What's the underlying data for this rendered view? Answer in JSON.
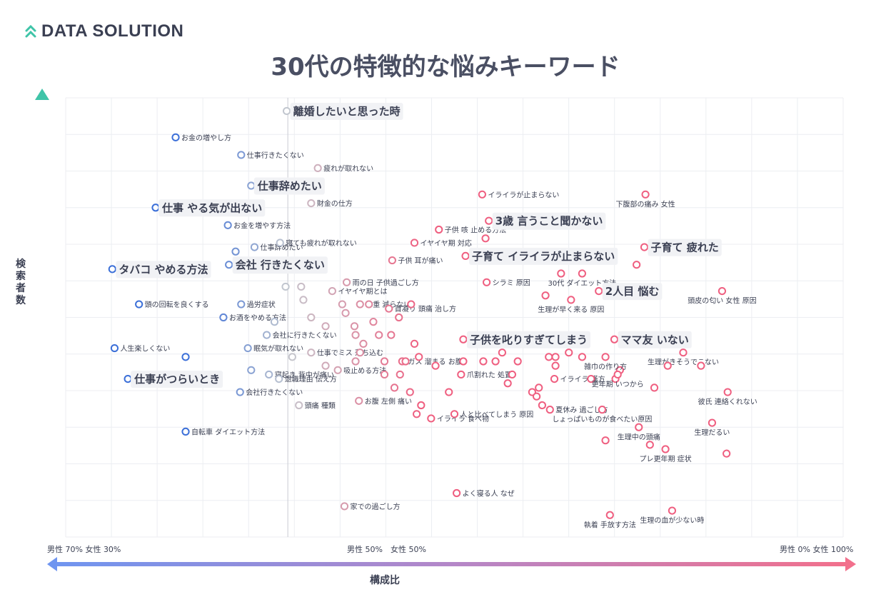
{
  "brand": {
    "name": "DATA SOLUTION",
    "icon": "double-chevron-up-icon",
    "color": "#3fc4a8"
  },
  "title": "30代の特徴的な悩みキーワード",
  "chart_data": {
    "type": "scatter",
    "ylabel": "検索者数",
    "xlabel": "構成比",
    "xticks": [
      "男性 70% 女性 30%",
      "男性 50%　女性 50%",
      "男性 0% 女性 100%"
    ],
    "xlim": [
      30,
      100
    ],
    "ylim": [
      0,
      100
    ],
    "x_unit": "女性比率(%)",
    "y_unit": "相対値",
    "grid": true,
    "colors": {
      "male": "#3b6fd8",
      "female": "#ef5f80",
      "neutral": "#c4c8cf"
    },
    "points": [
      {
        "label": "離婚したいと思った時",
        "x": 49.9,
        "y": 97,
        "emph": true
      },
      {
        "label": "お金の増やし方",
        "x": 39.9,
        "y": 91
      },
      {
        "label": "仕事行きたくない",
        "x": 45.8,
        "y": 87
      },
      {
        "label": "疲れが取れない",
        "x": 52.7,
        "y": 84
      },
      {
        "label": "仕事辞めたい",
        "x": 46.7,
        "y": 80,
        "emph": true
      },
      {
        "label": "財金の仕方",
        "x": 52.1,
        "y": 76
      },
      {
        "label": "仕事 やる気が出ない",
        "x": 38.1,
        "y": 75,
        "emph": true
      },
      {
        "label": "お金を増やす方法",
        "x": 44.6,
        "y": 71
      },
      {
        "label": "仕事辞めたい",
        "x": 47.0,
        "y": 66
      },
      {
        "label": "寝ても疲れが取れない",
        "x": 49.3,
        "y": 67
      },
      {
        "label": "",
        "x": 45.3,
        "y": 65
      },
      {
        "label": "タバコ やめる方法",
        "x": 34.2,
        "y": 61,
        "emph": true
      },
      {
        "label": "会社 行きたくない",
        "x": 44.7,
        "y": 62,
        "emph": true
      },
      {
        "label": "イヤイヤ期とは",
        "x": 54.0,
        "y": 56
      },
      {
        "label": "",
        "x": 49.8,
        "y": 57
      },
      {
        "label": "",
        "x": 51.2,
        "y": 57
      },
      {
        "label": "過労症状",
        "x": 45.8,
        "y": 53
      },
      {
        "label": "",
        "x": 51.4,
        "y": 54
      },
      {
        "label": "頭の回転を良くする",
        "x": 36.6,
        "y": 53
      },
      {
        "label": "お酒をやめる方法",
        "x": 44.2,
        "y": 50
      },
      {
        "label": "",
        "x": 48.8,
        "y": 49
      },
      {
        "label": "会社に行きたくない",
        "x": 48.1,
        "y": 46
      },
      {
        "label": "人生楽しくない",
        "x": 34.4,
        "y": 43
      },
      {
        "label": "眠気が取れない",
        "x": 46.4,
        "y": 43
      },
      {
        "label": "",
        "x": 40.8,
        "y": 41
      },
      {
        "label": "",
        "x": 50.4,
        "y": 41
      },
      {
        "label": "",
        "x": 46.7,
        "y": 38
      },
      {
        "label": "寝起き 背中が痛い",
        "x": 48.3,
        "y": 37
      },
      {
        "label": "仕事がつらいとき",
        "x": 35.6,
        "y": 36,
        "emph": true
      },
      {
        "label": "退職理由 伝え方",
        "x": 49.2,
        "y": 36
      },
      {
        "label": "会社行きたくない",
        "x": 45.7,
        "y": 33
      },
      {
        "label": "頭痛 種類",
        "x": 51.0,
        "y": 30
      },
      {
        "label": "自転車 ダイエット方法",
        "x": 40.8,
        "y": 24
      },
      {
        "label": "",
        "x": 52.1,
        "y": 50
      },
      {
        "label": "",
        "x": 53.4,
        "y": 48
      },
      {
        "label": "仕事でミス 落ち込む",
        "x": 52.1,
        "y": 42
      },
      {
        "label": "",
        "x": 53.4,
        "y": 39
      },
      {
        "label": "吸止める方法",
        "x": 54.5,
        "y": 38
      },
      {
        "label": "家での過ごし方",
        "x": 55.1,
        "y": 7
      },
      {
        "label": "雨の日 子供過ごし方",
        "x": 55.3,
        "y": 58
      },
      {
        "label": "体重 減らない",
        "x": 56.5,
        "y": 53
      },
      {
        "label": "首凝り 頭痛 治し方",
        "x": 59.1,
        "y": 52
      },
      {
        "label": "子供 耳が痛い",
        "x": 59.4,
        "y": 63
      },
      {
        "label": "イヤイヤ期 対応",
        "x": 61.4,
        "y": 67
      },
      {
        "label": "子供 咳 止める方法",
        "x": 63.6,
        "y": 70
      },
      {
        "label": "ガス 溜まる お腹",
        "x": 60.3,
        "y": 40
      },
      {
        "label": "お腹 左側 痛い",
        "x": 56.4,
        "y": 31
      },
      {
        "label": "",
        "x": 54.9,
        "y": 53
      },
      {
        "label": "",
        "x": 55.2,
        "y": 51
      },
      {
        "label": "",
        "x": 56.0,
        "y": 48
      },
      {
        "label": "",
        "x": 56.1,
        "y": 46
      },
      {
        "label": "",
        "x": 56.8,
        "y": 44
      },
      {
        "label": "",
        "x": 56.5,
        "y": 42
      },
      {
        "label": "",
        "x": 56.1,
        "y": 40
      },
      {
        "label": "",
        "x": 58.2,
        "y": 46
      },
      {
        "label": "",
        "x": 57.3,
        "y": 53
      },
      {
        "label": "",
        "x": 57.7,
        "y": 49
      },
      {
        "label": "",
        "x": 58.7,
        "y": 40
      },
      {
        "label": "",
        "x": 58.7,
        "y": 37
      },
      {
        "label": "",
        "x": 59.6,
        "y": 34
      },
      {
        "label": "",
        "x": 60.1,
        "y": 37
      },
      {
        "label": "",
        "x": 60.6,
        "y": 40
      },
      {
        "label": "",
        "x": 61.0,
        "y": 33
      },
      {
        "label": "",
        "x": 61.4,
        "y": 44
      },
      {
        "label": "",
        "x": 59.3,
        "y": 46
      },
      {
        "label": "",
        "x": 60.0,
        "y": 50
      },
      {
        "label": "",
        "x": 61.1,
        "y": 53
      },
      {
        "label": "",
        "x": 61.8,
        "y": 41
      },
      {
        "label": "",
        "x": 62.0,
        "y": 30
      },
      {
        "label": "",
        "x": 61.6,
        "y": 28
      },
      {
        "label": "",
        "x": 63.3,
        "y": 39
      },
      {
        "label": "イライラ 食べ物",
        "x": 62.9,
        "y": 27
      },
      {
        "label": "人と比べてしまう 原因",
        "x": 65.0,
        "y": 28
      },
      {
        "label": "",
        "x": 64.5,
        "y": 33
      },
      {
        "label": "爪割れた 処置",
        "x": 65.6,
        "y": 37
      },
      {
        "label": "",
        "x": 65.8,
        "y": 40
      },
      {
        "label": "よく寝る人 なぜ",
        "x": 65.2,
        "y": 10
      },
      {
        "label": "子育て イライラが止まらない",
        "x": 66.0,
        "y": 64,
        "emph": true
      },
      {
        "label": "イライラが止まらない",
        "x": 67.5,
        "y": 78
      },
      {
        "label": "3歳 言うこと聞かない",
        "x": 68.1,
        "y": 72,
        "emph": true
      },
      {
        "label": "",
        "x": 67.8,
        "y": 68
      },
      {
        "label": "シラミ 原因",
        "x": 67.9,
        "y": 58
      },
      {
        "label": "子供を叱りすぎてしまう",
        "x": 65.8,
        "y": 45,
        "emph": true
      },
      {
        "label": "",
        "x": 67.6,
        "y": 40
      },
      {
        "label": "",
        "x": 68.7,
        "y": 40
      },
      {
        "label": "",
        "x": 69.3,
        "y": 42
      },
      {
        "label": "",
        "x": 69.8,
        "y": 35
      },
      {
        "label": "",
        "x": 70.7,
        "y": 40
      },
      {
        "label": "",
        "x": 70.2,
        "y": 37
      },
      {
        "label": "",
        "x": 72.0,
        "y": 33
      },
      {
        "label": "",
        "x": 72.6,
        "y": 34
      },
      {
        "label": "",
        "x": 72.4,
        "y": 32
      },
      {
        "label": "夏休み 過ごし方",
        "x": 73.6,
        "y": 29
      },
      {
        "label": "",
        "x": 72.9,
        "y": 30
      },
      {
        "label": "",
        "x": 73.5,
        "y": 41
      },
      {
        "label": "",
        "x": 74.1,
        "y": 41
      },
      {
        "label": "",
        "x": 74.1,
        "y": 39
      },
      {
        "label": "イライラ 漢方",
        "x": 74.0,
        "y": 36
      },
      {
        "label": "",
        "x": 75.3,
        "y": 42
      },
      {
        "label": "",
        "x": 76.5,
        "y": 41
      },
      {
        "label": "生理が早く来る 原因",
        "x": 75.5,
        "y": 54
      },
      {
        "label": "",
        "x": 73.2,
        "y": 55
      },
      {
        "label": "",
        "x": 74.6,
        "y": 60
      },
      {
        "label": "30代 ダイエット方法",
        "x": 76.5,
        "y": 60
      },
      {
        "label": "2人目 悩む",
        "x": 78.0,
        "y": 56,
        "emph": true
      },
      {
        "label": "",
        "x": 77.3,
        "y": 36
      },
      {
        "label": "",
        "x": 79.5,
        "y": 36
      },
      {
        "label": "",
        "x": 79.9,
        "y": 38
      },
      {
        "label": "ママ友 いない",
        "x": 79.4,
        "y": 45,
        "emph": true
      },
      {
        "label": "雑巾の作り方",
        "x": 78.6,
        "y": 41
      },
      {
        "label": "更年期 いつから",
        "x": 79.7,
        "y": 37
      },
      {
        "label": "子育て 疲れた",
        "x": 82.1,
        "y": 66,
        "emph": true
      },
      {
        "label": "",
        "x": 81.4,
        "y": 62
      },
      {
        "label": "下腹部の痛み 女性",
        "x": 82.2,
        "y": 78
      },
      {
        "label": "頭皮の匂い 女性 原因",
        "x": 89.1,
        "y": 56
      },
      {
        "label": "生理がきそうでこない",
        "x": 85.6,
        "y": 42
      },
      {
        "label": "",
        "x": 84.2,
        "y": 39
      },
      {
        "label": "",
        "x": 83.0,
        "y": 34
      },
      {
        "label": "",
        "x": 87.2,
        "y": 39
      },
      {
        "label": "しょっぱいものが食べたい原因",
        "x": 78.3,
        "y": 29
      },
      {
        "label": "生理中の頭痛",
        "x": 81.6,
        "y": 25
      },
      {
        "label": "",
        "x": 78.6,
        "y": 22
      },
      {
        "label": "プレ更年期 症状",
        "x": 84.0,
        "y": 20
      },
      {
        "label": "",
        "x": 82.6,
        "y": 21
      },
      {
        "label": "生理だるい",
        "x": 88.2,
        "y": 26
      },
      {
        "label": "彼氏 連絡くれない",
        "x": 89.6,
        "y": 33
      },
      {
        "label": "",
        "x": 89.5,
        "y": 19
      },
      {
        "label": "執着 手放す方法",
        "x": 79.0,
        "y": 5
      },
      {
        "label": "生理の血が少ない時",
        "x": 84.6,
        "y": 6
      }
    ]
  }
}
